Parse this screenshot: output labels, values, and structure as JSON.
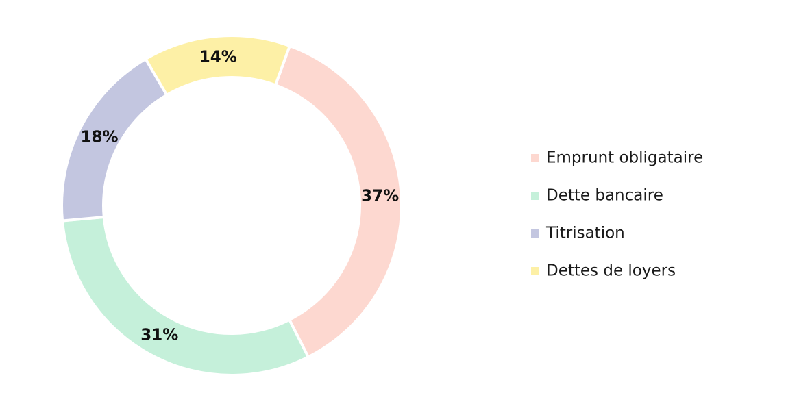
{
  "chart_data": {
    "type": "donut",
    "categories": [
      "Emprunt obligataire",
      "Dette bancaire",
      "Titrisation",
      "Dettes de loyers"
    ],
    "values": [
      37,
      31,
      18,
      14
    ],
    "value_labels": [
      "37%",
      "31%",
      "18%",
      "14%"
    ],
    "colors": [
      "#fdd8d0",
      "#c5f0da",
      "#c3c6e0",
      "#fdf0a6"
    ]
  }
}
